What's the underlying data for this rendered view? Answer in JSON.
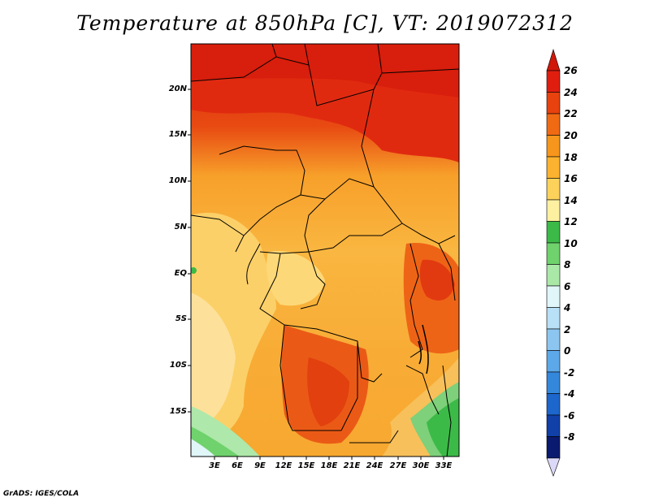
{
  "title": "Temperature at 850hPa [C], VT: 2019072312",
  "credit": "GrADS: IGES/COLA",
  "map": {
    "lat_labels": [
      "20N",
      "15N",
      "10N",
      "5N",
      "EQ",
      "5S",
      "10S",
      "15S"
    ],
    "lon_labels": [
      "3E",
      "6E",
      "9E",
      "12E",
      "15E",
      "18E",
      "21E",
      "24E",
      "27E",
      "30E",
      "33E"
    ]
  },
  "colorbar": {
    "levels": [
      "26",
      "24",
      "22",
      "20",
      "18",
      "16",
      "14",
      "12",
      "10",
      "8",
      "6",
      "4",
      "2",
      "0",
      "-2",
      "-4",
      "-6",
      "-8"
    ],
    "colors": [
      "#e01e10",
      "#e8420e",
      "#f06a14",
      "#f7961c",
      "#fbb22e",
      "#fdd25a",
      "#fdf0a0",
      "#3cba48",
      "#6fd26c",
      "#aae8a8",
      "#e0f6f8",
      "#b8e0f6",
      "#8cc6f0",
      "#5ca8e8",
      "#3488dc",
      "#1c66cc",
      "#1040a8",
      "#0a1a6e"
    ],
    "top_arrow_color": "#d0180a",
    "bottom_arrow_color": "#dcd8f8"
  }
}
